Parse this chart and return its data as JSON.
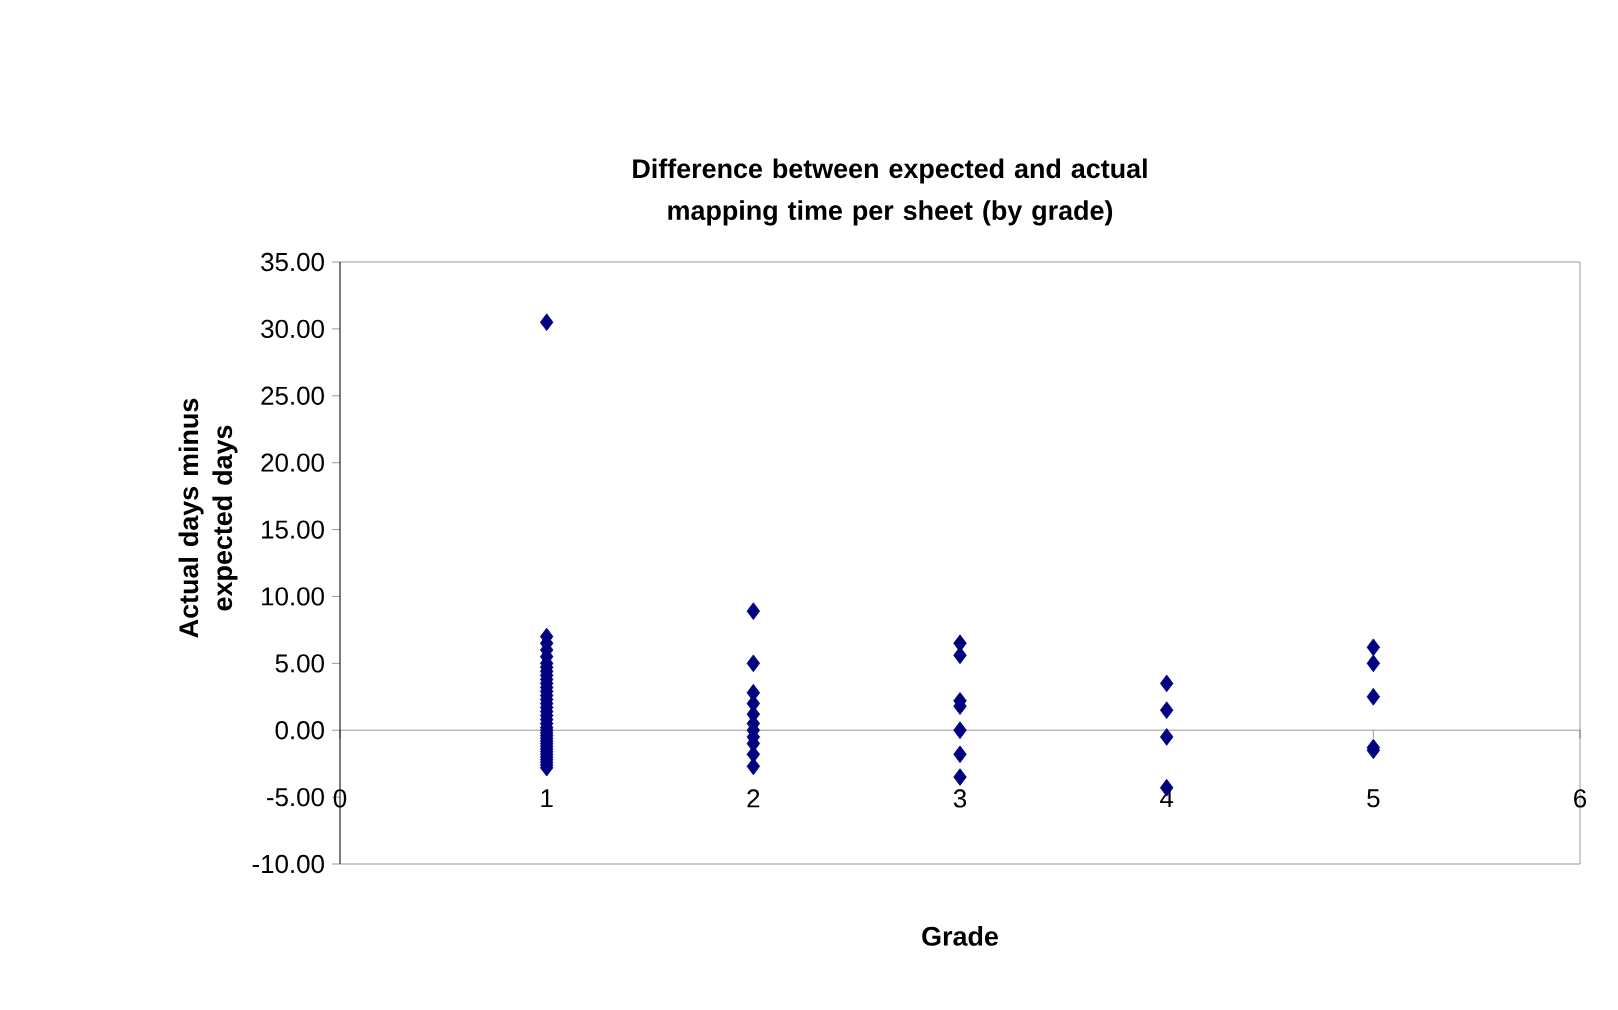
{
  "chart_data": {
    "type": "scatter",
    "title": "Difference between expected and actual mapping time per sheet (by grade)",
    "xlabel": "Grade",
    "ylabel": "Actual days minus expected days",
    "series": [
      {
        "color": "#000080",
        "x": [
          1,
          1,
          1,
          1,
          1,
          1,
          1,
          1,
          1,
          1,
          1,
          1,
          1,
          1,
          1,
          1,
          1,
          1,
          1,
          1,
          1,
          1,
          1,
          1,
          1,
          1,
          1,
          1,
          1,
          1,
          1,
          1,
          1,
          1,
          1,
          1,
          1,
          2,
          2,
          2,
          2,
          2,
          2,
          2,
          2,
          2,
          2,
          2,
          3,
          3,
          3,
          3,
          3,
          3,
          3,
          4,
          4,
          4,
          4,
          5,
          5,
          5,
          5,
          5
        ],
        "values": [
          30.5,
          7.0,
          6.5,
          6.0,
          5.5,
          5.0,
          4.7,
          4.4,
          4.1,
          3.8,
          3.5,
          3.2,
          2.9,
          2.6,
          2.3,
          2.0,
          1.7,
          1.4,
          1.1,
          0.8,
          0.5,
          0.2,
          0.0,
          -0.2,
          -0.4,
          -0.6,
          -0.8,
          -1.0,
          -1.2,
          -1.4,
          -1.6,
          -1.8,
          -2.0,
          -2.2,
          -2.4,
          -2.6,
          -2.8,
          8.9,
          5.0,
          2.8,
          2.0,
          1.2,
          0.5,
          0.0,
          -0.5,
          -1.0,
          -1.8,
          -2.7,
          6.5,
          5.6,
          2.2,
          1.8,
          0.0,
          -1.8,
          -3.5,
          3.5,
          1.5,
          -0.5,
          -4.3,
          6.2,
          5.0,
          2.5,
          -1.3,
          -1.5
        ]
      }
    ],
    "xlim": [
      0,
      6
    ],
    "ylim": [
      -10,
      35
    ],
    "xticks": [
      0,
      1,
      2,
      3,
      4,
      5,
      6
    ],
    "yticks": [
      {
        "value": -10,
        "label": "-10.00"
      },
      {
        "value": -5,
        "label": "-5.00"
      },
      {
        "value": 0,
        "label": "0.00"
      },
      {
        "value": 5,
        "label": "5.00"
      },
      {
        "value": 10,
        "label": "10.00"
      },
      {
        "value": 15,
        "label": "15.00"
      },
      {
        "value": 20,
        "label": "20.00"
      },
      {
        "value": 25,
        "label": "25.00"
      },
      {
        "value": 30,
        "label": "30.00"
      },
      {
        "value": 35,
        "label": "35.00"
      }
    ],
    "marker": "diamond",
    "grid": false
  }
}
